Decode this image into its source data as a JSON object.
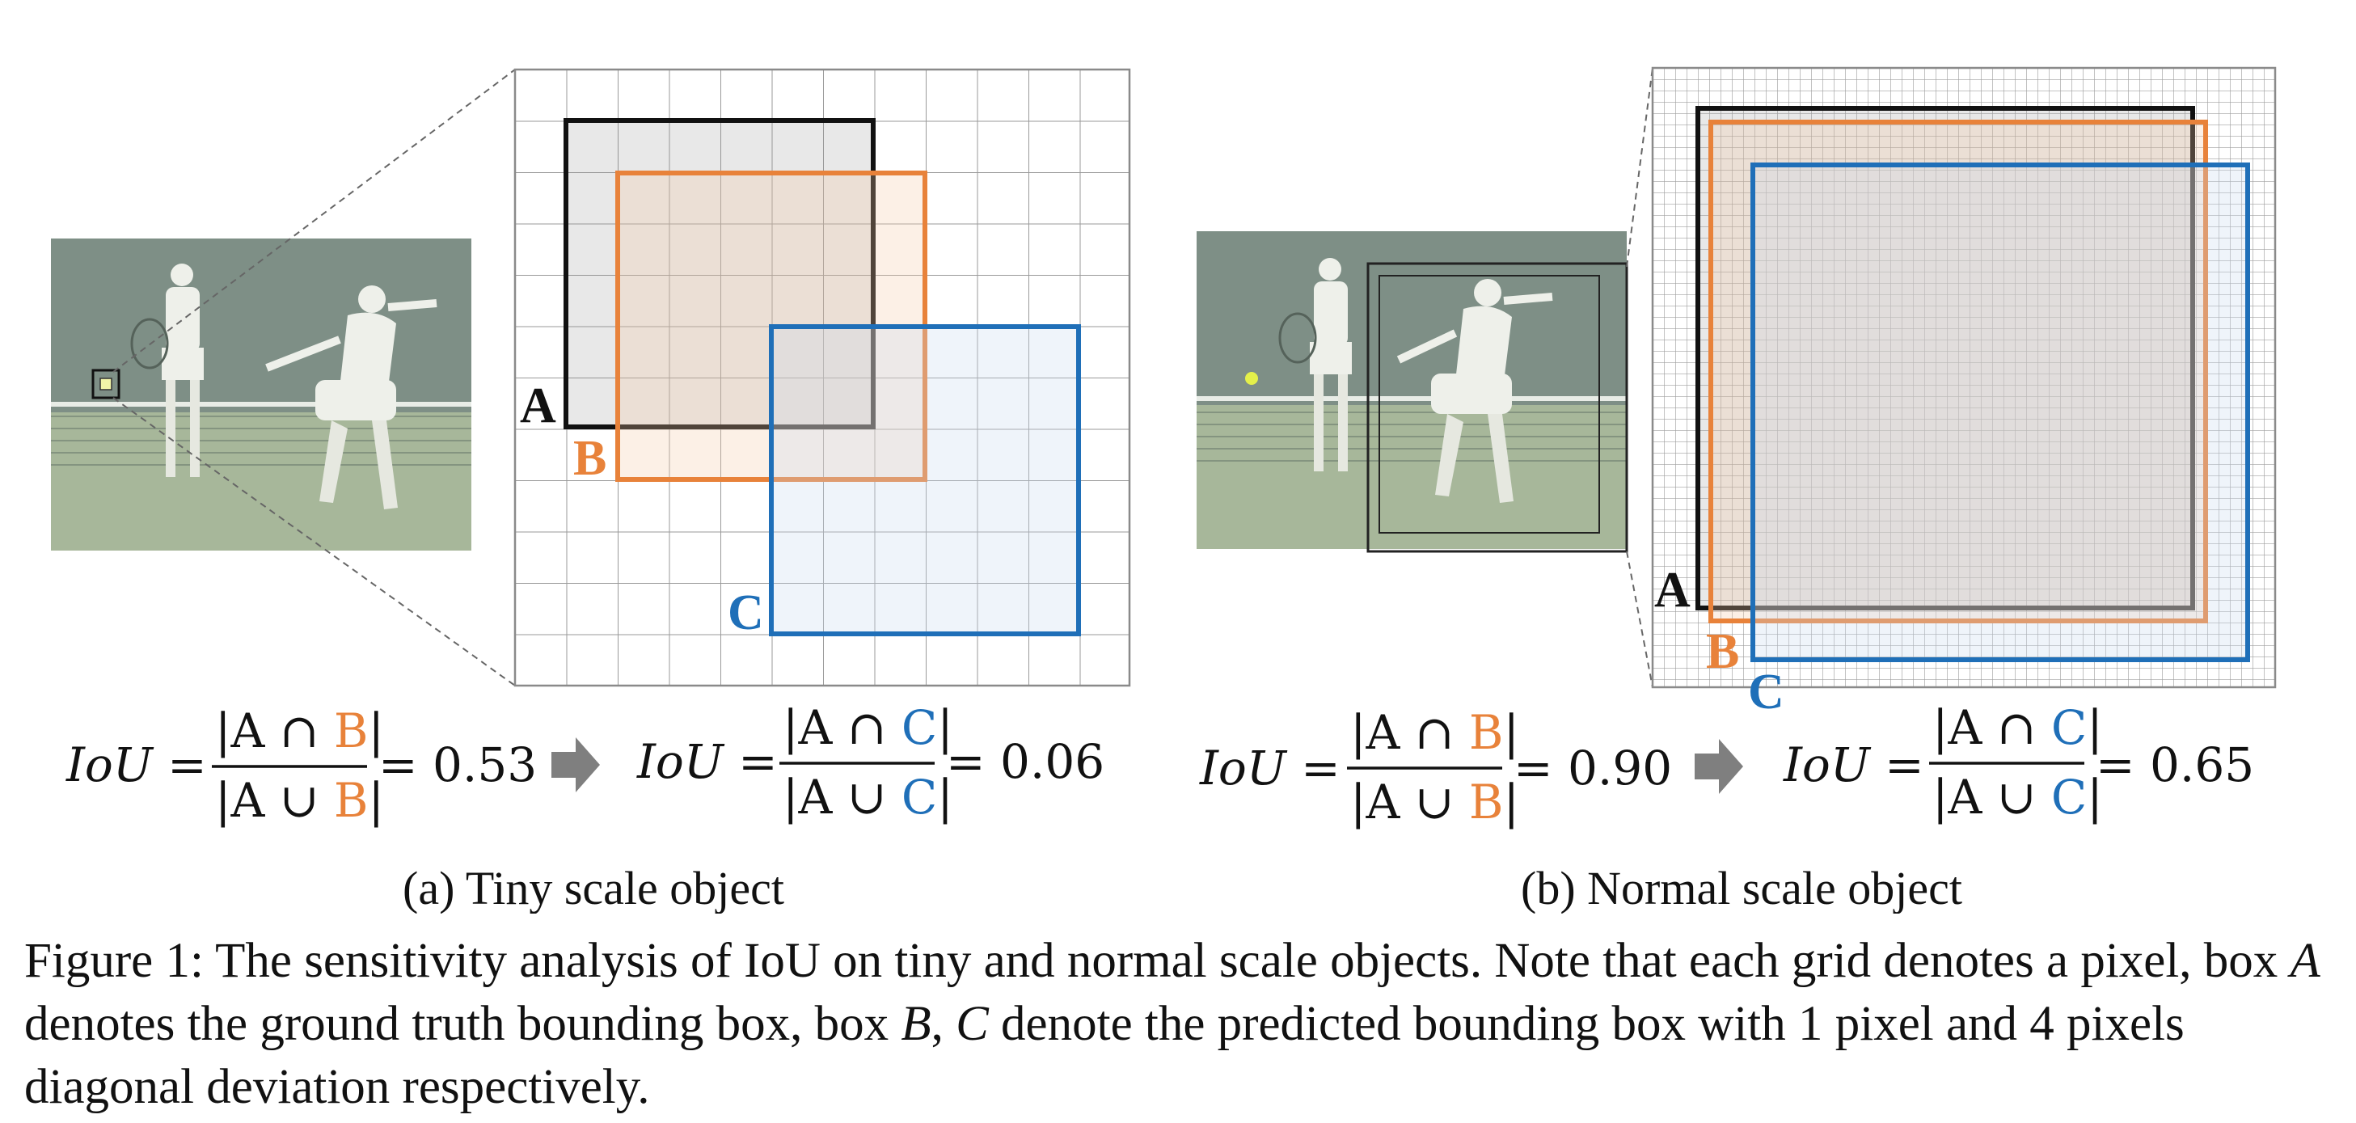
{
  "colors": {
    "box_a": "#111111",
    "box_b": "#e8823a",
    "box_c": "#1f6fb8",
    "arrow": "#7f7f7f",
    "grid": "#9a9a9a"
  },
  "panel_a": {
    "box_labels": {
      "a": "A",
      "b": "B",
      "c": "C"
    },
    "formula1": {
      "lhs": "IoU =",
      "num_prefix": "|A ∩ ",
      "num_var": "B",
      "num_suffix": "|",
      "den_prefix": "|A ∪ ",
      "den_var": "B",
      "den_suffix": "|",
      "result": "= 0.53"
    },
    "formula2": {
      "lhs": "IoU =",
      "num_prefix": "|A ∩ ",
      "num_var": "C",
      "num_suffix": "|",
      "den_prefix": "|A ∪ ",
      "den_var": "C",
      "den_suffix": "|",
      "result": "= 0.06"
    },
    "subcaption": "(a) Tiny scale object"
  },
  "panel_b": {
    "box_labels": {
      "a": "A",
      "b": "B",
      "c": "C"
    },
    "formula1": {
      "lhs": "IoU =",
      "num_prefix": "|A ∩ ",
      "num_var": "B",
      "num_suffix": "|",
      "den_prefix": "|A ∪ ",
      "den_var": "B",
      "den_suffix": "|",
      "result": "= 0.90"
    },
    "formula2": {
      "lhs": "IoU =",
      "num_prefix": "|A ∩ ",
      "num_var": "C",
      "num_suffix": "|",
      "den_prefix": "|A ∪ ",
      "den_var": "C",
      "den_suffix": "|",
      "result": "= 0.65"
    },
    "subcaption": "(b) Normal scale object"
  },
  "caption": {
    "t1": "Figure 1: The sensitivity analysis of IoU on tiny and normal scale objects. Note that each grid denotes a pixel, box ",
    "v1": "A",
    "t2": " denotes the ground truth bounding box, box ",
    "v2": "B",
    "t3": ", ",
    "v3": "C",
    "t4": " denote the predicted bounding box with 1 pixel and 4 pixels diagonal deviation respectively."
  }
}
